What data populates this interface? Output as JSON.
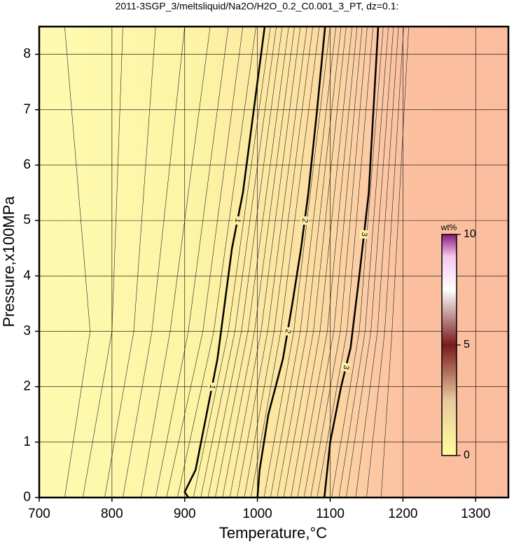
{
  "chart_data": {
    "type": "contour",
    "title": "2011-3SGP_3/meltsliquid/Na2O/H2O_0.2_C0.001_3_PT, dz=0.1:",
    "x_label": "Temperature,°C",
    "y_label": "Pressure,x100MPa",
    "xlim": [
      700,
      1345
    ],
    "xticks": [
      700,
      800,
      900,
      1000,
      1100,
      1200,
      1300
    ],
    "ylim": [
      0,
      8.5
    ],
    "yticks": [
      0,
      1,
      2,
      3,
      4,
      5,
      6,
      7,
      8
    ],
    "grid": true,
    "contours": [
      {
        "level": 1,
        "x": [
          905,
          900,
          915,
          930,
          945,
          955,
          965,
          980,
          995,
          1010
        ],
        "y": [
          0,
          0.1,
          0.5,
          1.5,
          2.5,
          3.5,
          4.5,
          5.5,
          7,
          8.5
        ]
      },
      {
        "level": 2,
        "x": [
          1000,
          1003,
          1015,
          1035,
          1048,
          1060,
          1070,
          1082,
          1093
        ],
        "y": [
          0,
          0.5,
          1.5,
          2.5,
          3.5,
          4.5,
          5.5,
          7,
          8.5
        ]
      },
      {
        "level": 3,
        "x": [
          1092,
          1100,
          1115,
          1128,
          1140,
          1153,
          1166
        ],
        "y": [
          0,
          1,
          2,
          2.7,
          4,
          5.5,
          8.5
        ]
      }
    ],
    "thin_y": [
      0,
      3,
      8.5
    ],
    "thin_contours": [
      [
        735,
        770,
        735
      ],
      [
        760,
        800,
        815
      ],
      [
        790,
        830,
        860
      ],
      [
        815,
        855,
        900
      ],
      [
        840,
        880,
        935
      ],
      [
        860,
        905,
        960
      ],
      [
        875,
        925,
        980
      ],
      [
        890,
        940,
        998
      ],
      [
        912,
        960,
        1018
      ],
      [
        922,
        969,
        1026
      ],
      [
        932,
        978,
        1034
      ],
      [
        942,
        987,
        1043
      ],
      [
        952,
        996,
        1051
      ],
      [
        962,
        1005,
        1059
      ],
      [
        972,
        1014,
        1068
      ],
      [
        982,
        1023,
        1076
      ],
      [
        991,
        1032,
        1085
      ],
      [
        1009,
        1050,
        1100
      ],
      [
        1018,
        1059,
        1108
      ],
      [
        1027,
        1068,
        1115
      ],
      [
        1036,
        1077,
        1122
      ],
      [
        1046,
        1086,
        1130
      ],
      [
        1055,
        1096,
        1137
      ],
      [
        1064,
        1105,
        1144
      ],
      [
        1073,
        1114,
        1151
      ],
      [
        1082,
        1123,
        1159
      ],
      [
        1102,
        1140,
        1173
      ],
      [
        1112,
        1148,
        1180
      ],
      [
        1122,
        1156,
        1187
      ],
      [
        1135,
        1165,
        1194
      ],
      [
        1150,
        1175,
        1201
      ],
      [
        1170,
        1185,
        1208
      ]
    ],
    "colorbar": {
      "label": "wt%",
      "lim": [
        0,
        10
      ],
      "ticks": [
        0,
        5,
        10
      ]
    }
  }
}
